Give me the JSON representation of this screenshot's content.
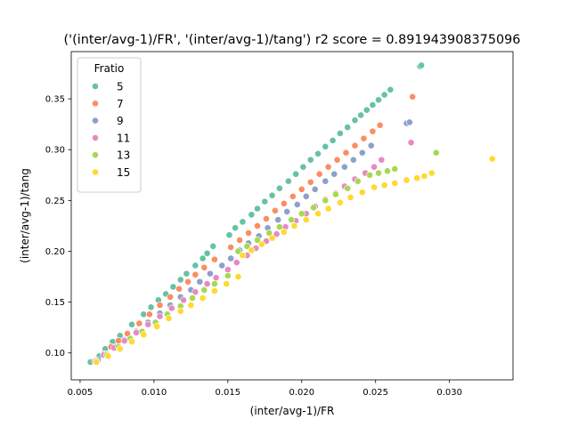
{
  "chart_data": {
    "type": "scatter",
    "title": "('(inter/avg-1)/FR', '(inter/avg-1)/tang') r2 score = 0.891943908375096",
    "xlabel": "(inter/avg-1)/FR",
    "ylabel": "(inter/avg-1)/tang",
    "xlim": [
      0.0044,
      0.0343
    ],
    "ylim": [
      0.0735,
      0.3965
    ],
    "x_ticks": [
      "0.005",
      "0.010",
      "0.015",
      "0.020",
      "0.025",
      "0.030"
    ],
    "y_ticks": [
      "0.10",
      "0.15",
      "0.20",
      "0.25",
      "0.30",
      "0.35"
    ],
    "grid": false,
    "legend_title": "Fratio",
    "legend_position": "top-left",
    "series": [
      {
        "name": "5",
        "color": "#66c2a5",
        "x": [
          0.0057,
          0.0063,
          0.0067,
          0.0072,
          0.0077,
          0.0085,
          0.0093,
          0.0098,
          0.0103,
          0.0108,
          0.0113,
          0.0118,
          0.0122,
          0.0128,
          0.0133,
          0.0136,
          0.014,
          0.0151,
          0.0155,
          0.016,
          0.0166,
          0.017,
          0.0175,
          0.018,
          0.0185,
          0.0191,
          0.0196,
          0.0201,
          0.0206,
          0.0211,
          0.0216,
          0.0221,
          0.0226,
          0.0231,
          0.0236,
          0.024,
          0.0244,
          0.0248,
          0.0252,
          0.0256,
          0.026,
          0.028,
          0.0281
        ],
        "y": [
          0.091,
          0.097,
          0.104,
          0.111,
          0.117,
          0.128,
          0.138,
          0.145,
          0.152,
          0.158,
          0.165,
          0.172,
          0.178,
          0.186,
          0.193,
          0.198,
          0.205,
          0.216,
          0.223,
          0.229,
          0.236,
          0.242,
          0.249,
          0.255,
          0.262,
          0.269,
          0.276,
          0.283,
          0.29,
          0.296,
          0.303,
          0.309,
          0.316,
          0.322,
          0.329,
          0.334,
          0.339,
          0.344,
          0.349,
          0.354,
          0.359,
          0.382,
          0.383
        ]
      },
      {
        "name": "7",
        "color": "#fc8d62",
        "x": [
          0.0061,
          0.0066,
          0.0071,
          0.0076,
          0.0082,
          0.009,
          0.0097,
          0.0104,
          0.0111,
          0.0117,
          0.0123,
          0.0128,
          0.0134,
          0.0141,
          0.0152,
          0.0158,
          0.0164,
          0.017,
          0.0176,
          0.0182,
          0.0188,
          0.0194,
          0.02,
          0.0206,
          0.0212,
          0.0218,
          0.0224,
          0.023,
          0.0236,
          0.0242,
          0.0248,
          0.0253,
          0.0275
        ],
        "y": [
          0.093,
          0.099,
          0.106,
          0.112,
          0.119,
          0.129,
          0.138,
          0.147,
          0.155,
          0.163,
          0.17,
          0.177,
          0.184,
          0.192,
          0.204,
          0.211,
          0.218,
          0.225,
          0.232,
          0.24,
          0.247,
          0.254,
          0.261,
          0.268,
          0.276,
          0.283,
          0.29,
          0.297,
          0.304,
          0.311,
          0.318,
          0.324,
          0.352
        ]
      },
      {
        "name": "9",
        "color": "#8da0cb",
        "x": [
          0.0062,
          0.0068,
          0.0074,
          0.008,
          0.0088,
          0.0096,
          0.0104,
          0.0111,
          0.0118,
          0.0125,
          0.0131,
          0.0138,
          0.0146,
          0.0152,
          0.0158,
          0.0164,
          0.0171,
          0.0177,
          0.0184,
          0.019,
          0.0197,
          0.0203,
          0.0209,
          0.0216,
          0.0222,
          0.0229,
          0.0235,
          0.0241,
          0.0247,
          0.0271,
          0.0273
        ],
        "y": [
          0.093,
          0.099,
          0.106,
          0.113,
          0.121,
          0.13,
          0.139,
          0.147,
          0.155,
          0.162,
          0.17,
          0.178,
          0.186,
          0.193,
          0.201,
          0.208,
          0.215,
          0.223,
          0.231,
          0.239,
          0.246,
          0.254,
          0.261,
          0.269,
          0.276,
          0.283,
          0.29,
          0.297,
          0.304,
          0.326,
          0.327
        ]
      },
      {
        "name": "11",
        "color": "#e78ac3",
        "x": [
          0.006,
          0.0066,
          0.0073,
          0.008,
          0.0088,
          0.0096,
          0.0104,
          0.0112,
          0.012,
          0.0128,
          0.0136,
          0.0142,
          0.015,
          0.0156,
          0.0163,
          0.0169,
          0.0176,
          0.0183,
          0.0189,
          0.0196,
          0.0203,
          0.0209,
          0.0216,
          0.0223,
          0.0229,
          0.0236,
          0.0243,
          0.0249,
          0.0254,
          0.0274
        ],
        "y": [
          0.092,
          0.098,
          0.105,
          0.112,
          0.12,
          0.128,
          0.136,
          0.144,
          0.152,
          0.16,
          0.168,
          0.174,
          0.182,
          0.189,
          0.196,
          0.203,
          0.21,
          0.217,
          0.224,
          0.23,
          0.237,
          0.244,
          0.251,
          0.257,
          0.264,
          0.271,
          0.277,
          0.283,
          0.29,
          0.307
        ]
      },
      {
        "name": "13",
        "color": "#a6d854",
        "x": [
          0.0061,
          0.0068,
          0.0076,
          0.0084,
          0.0092,
          0.0101,
          0.0109,
          0.0118,
          0.0126,
          0.0134,
          0.0141,
          0.015,
          0.0157,
          0.0163,
          0.017,
          0.0178,
          0.0185,
          0.0193,
          0.02,
          0.0208,
          0.0216,
          0.0223,
          0.0231,
          0.0238,
          0.0246,
          0.0252,
          0.0258,
          0.0263,
          0.0291
        ],
        "y": [
          0.092,
          0.098,
          0.106,
          0.114,
          0.121,
          0.13,
          0.138,
          0.146,
          0.154,
          0.162,
          0.168,
          0.176,
          0.2,
          0.205,
          0.211,
          0.218,
          0.224,
          0.231,
          0.237,
          0.243,
          0.25,
          0.256,
          0.262,
          0.269,
          0.275,
          0.277,
          0.279,
          0.281,
          0.297
        ]
      },
      {
        "name": "15",
        "color": "#ffd92f",
        "x": [
          0.0061,
          0.0069,
          0.0077,
          0.0085,
          0.0093,
          0.0102,
          0.011,
          0.0118,
          0.0125,
          0.0133,
          0.0141,
          0.0149,
          0.0157,
          0.016,
          0.0166,
          0.0173,
          0.018,
          0.0188,
          0.0195,
          0.0203,
          0.0211,
          0.0218,
          0.0226,
          0.0233,
          0.0241,
          0.0249,
          0.0256,
          0.0263,
          0.0271,
          0.0278,
          0.0283,
          0.0288,
          0.0329
        ],
        "y": [
          0.091,
          0.097,
          0.104,
          0.111,
          0.118,
          0.126,
          0.134,
          0.141,
          0.147,
          0.154,
          0.161,
          0.168,
          0.175,
          0.196,
          0.201,
          0.207,
          0.213,
          0.219,
          0.225,
          0.231,
          0.237,
          0.242,
          0.248,
          0.253,
          0.258,
          0.263,
          0.265,
          0.267,
          0.27,
          0.272,
          0.274,
          0.277,
          0.291
        ]
      }
    ]
  }
}
